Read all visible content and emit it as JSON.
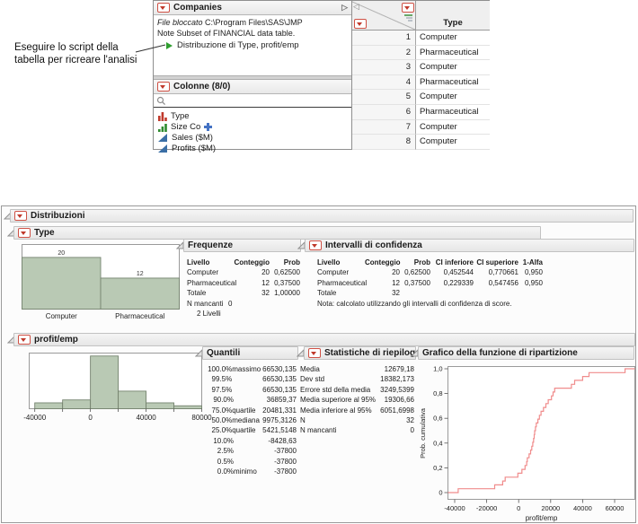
{
  "annotation": {
    "line1": "Eseguire lo script della",
    "line2": "tabella per ricreare l'analisi"
  },
  "data_table": {
    "companies": {
      "title": "Companies",
      "collapse_icon": "▷",
      "file_label": "File bloccato",
      "file_path": "C:\\Program Files\\SAS\\JMP",
      "note_line": "Note  Subset of FINANCIAL data table.",
      "script_name": "Distribuzione di Type, profit/emp"
    },
    "columns_panel": {
      "title": "Colonne (8/0)",
      "items": [
        {
          "label": "Type",
          "icon": "nominal-bars-icon"
        },
        {
          "label": "Size Co",
          "icon": "ordinal-bars-icon",
          "badge": "plus-icon"
        },
        {
          "label": "Sales ($M)",
          "icon": "continuous-triangle-icon"
        },
        {
          "label": "Profits ($M)",
          "icon": "continuous-triangle-icon"
        }
      ]
    },
    "grid": {
      "collapse_icon": "◁",
      "type_header": "Type",
      "rows": [
        [
          "1",
          "Computer"
        ],
        [
          "2",
          "Pharmaceutical"
        ],
        [
          "3",
          "Computer"
        ],
        [
          "4",
          "Pharmaceutical"
        ],
        [
          "5",
          "Computer"
        ],
        [
          "6",
          "Pharmaceutical"
        ],
        [
          "7",
          "Computer"
        ],
        [
          "8",
          "Computer"
        ]
      ]
    }
  },
  "report": {
    "title": "Distribuzioni",
    "type_section": {
      "title": "Type",
      "frequencies": {
        "title": "Frequenze",
        "headers": [
          "Livello",
          "Conteggio",
          "Prob"
        ],
        "rows": [
          [
            "Computer",
            "20",
            "0,62500"
          ],
          [
            "Pharmaceutical",
            "12",
            "0,37500"
          ],
          [
            "Totale",
            "32",
            "1,00000"
          ]
        ],
        "missing_label": "N mancanti",
        "missing_value": "0",
        "levels_note": "2 Livelli"
      },
      "confidence": {
        "title": "Intervalli di confidenza",
        "headers": [
          "Livello",
          "Conteggio",
          "Prob",
          "CI inferiore",
          "CI superiore",
          "1-Alfa"
        ],
        "rows": [
          [
            "Computer",
            "20",
            "0,62500",
            "0,452544",
            "0,770661",
            "0,950"
          ],
          [
            "Pharmaceutical",
            "12",
            "0,37500",
            "0,229339",
            "0,547456",
            "0,950"
          ],
          [
            "Totale",
            "32",
            "",
            "",
            "",
            ""
          ]
        ],
        "note": "Nota: calcolato utilizzando gli intervalli di confidenza di score."
      }
    },
    "profit_section": {
      "title": "profit/emp",
      "quantiles": {
        "title": "Quantili",
        "rows": [
          [
            "100.0%",
            "massimo",
            "66530,135"
          ],
          [
            "99.5%",
            "",
            "66530,135"
          ],
          [
            "97.5%",
            "",
            "66530,135"
          ],
          [
            "90.0%",
            "",
            "36859,37"
          ],
          [
            "75.0%",
            "quartile",
            "20481,331"
          ],
          [
            "50.0%",
            "mediana",
            "9975,3126"
          ],
          [
            "25.0%",
            "quartile",
            "5421,5148"
          ],
          [
            "10.0%",
            "",
            "-8428,63"
          ],
          [
            "2.5%",
            "",
            "-37800"
          ],
          [
            "0.5%",
            "",
            "-37800"
          ],
          [
            "0.0%",
            "minimo",
            "-37800"
          ]
        ]
      },
      "summary": {
        "title": "Statistiche di riepilogo",
        "rows": [
          [
            "Media",
            "12679,18"
          ],
          [
            "Dev std",
            "18382,173"
          ],
          [
            "Errore std della media",
            "3249,5399"
          ],
          [
            "Media superiore al 95%",
            "19306,66"
          ],
          [
            "Media inferiore al 95%",
            "6051,6998"
          ],
          [
            "N",
            "32"
          ],
          [
            "N mancanti",
            "0"
          ]
        ]
      },
      "cdf_title": "Grafico della funzione di ripartizione"
    }
  },
  "chart_data": [
    {
      "id": "type-histogram",
      "type": "bar",
      "title": "Type",
      "categories": [
        "Computer",
        "Pharmaceutical"
      ],
      "values": [
        20,
        12
      ],
      "bar_labels": [
        "20",
        "12"
      ],
      "ylim": [
        0,
        25
      ]
    },
    {
      "id": "profit-histogram",
      "type": "histogram",
      "title": "profit/emp",
      "bin_start": -40000,
      "bin_width": 20000,
      "counts": [
        2,
        3,
        18,
        6,
        2,
        1
      ],
      "xlim": [
        -44000,
        80000
      ],
      "ymax": 19,
      "xticks": [
        -40000,
        0,
        40000,
        80000
      ],
      "minor_xticks": [
        -20000,
        20000,
        60000
      ]
    },
    {
      "id": "cdf-plot",
      "type": "step",
      "title": "Grafico della funzione di ripartizione",
      "xlabel": "profit/emp",
      "ylabel": "Prob. cumulativa",
      "x_values": [
        -37800,
        -15000,
        -10000,
        -8428,
        -500,
        2000,
        4000,
        5000,
        5421,
        6500,
        7500,
        8200,
        8800,
        9300,
        9700,
        9975,
        10500,
        11000,
        12000,
        13000,
        14000,
        15500,
        17000,
        18500,
        20481,
        21500,
        22500,
        33000,
        35000,
        40000,
        44000,
        66530
      ],
      "xlim": [
        -44000,
        72000
      ],
      "xticks": [
        -40000,
        -20000,
        0,
        20000,
        40000,
        60000
      ],
      "yticks": [
        0,
        0.2,
        0.4,
        0.6,
        0.8,
        1
      ],
      "ytick_labels": [
        "0",
        "0,2",
        "0,4",
        "0,6",
        "0,8",
        "1,0"
      ]
    }
  ],
  "colors": {
    "accent_red": "#c0392b",
    "histogram_fill": "#b9c9b4",
    "histogram_border": "#75836f",
    "cdf_line": "#f08c8c",
    "script_green": "#2f9e2f",
    "continuous_blue": "#3a6ea5",
    "ordinal_green": "#2e8b2e",
    "frame_gray": "#9a9a9a"
  }
}
